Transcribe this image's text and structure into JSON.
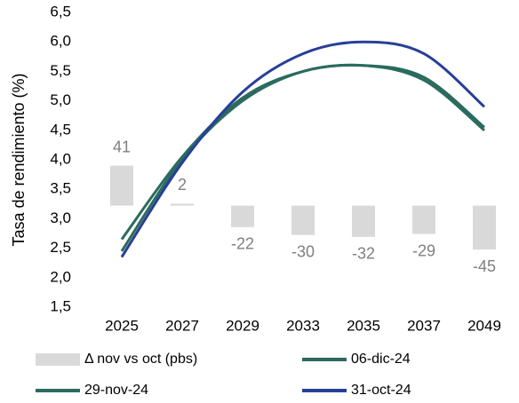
{
  "chart_data": {
    "type": "combo",
    "y_axis_label": "Tasa de rendimiento (%)",
    "categories": [
      "2025",
      "2027",
      "2029",
      "2033",
      "2035",
      "2037",
      "2049"
    ],
    "ylim": [
      1.5,
      6.5
    ],
    "yticks": [
      {
        "value": 1.5,
        "label": "1,5"
      },
      {
        "value": 2.0,
        "label": "2,0"
      },
      {
        "value": 2.5,
        "label": "2,5"
      },
      {
        "value": 3.0,
        "label": "3,0"
      },
      {
        "value": 3.5,
        "label": "3,5"
      },
      {
        "value": 4.0,
        "label": "4,0"
      },
      {
        "value": 4.5,
        "label": "4,5"
      },
      {
        "value": 5.0,
        "label": "5,0"
      },
      {
        "value": 5.5,
        "label": "5,5"
      },
      {
        "value": 6.0,
        "label": "6,0"
      },
      {
        "value": 6.5,
        "label": "6,5"
      }
    ],
    "y2lim": [
      -104,
      198
    ],
    "series": [
      {
        "name": "Δ nov vs oct (pbs)",
        "type": "bar",
        "axis": "y2",
        "color": "#d9d9d9",
        "label_color": "#7f7f7f",
        "values": [
          41,
          2,
          -22,
          -30,
          -32,
          -29,
          -45
        ]
      },
      {
        "name": "06-dic-24",
        "type": "line",
        "color": "#2d6a5d",
        "values": [
          2.45,
          4.0,
          5.0,
          5.5,
          5.6,
          5.4,
          4.55
        ]
      },
      {
        "name": "29-nov-24",
        "type": "line",
        "color": "#2a6b60",
        "values": [
          2.65,
          4.05,
          5.05,
          5.5,
          5.6,
          5.35,
          4.5
        ]
      },
      {
        "name": "31-oct-24",
        "type": "line",
        "color": "#273f97",
        "values": [
          2.35,
          3.95,
          5.15,
          5.8,
          6.0,
          5.8,
          4.9
        ]
      }
    ]
  }
}
